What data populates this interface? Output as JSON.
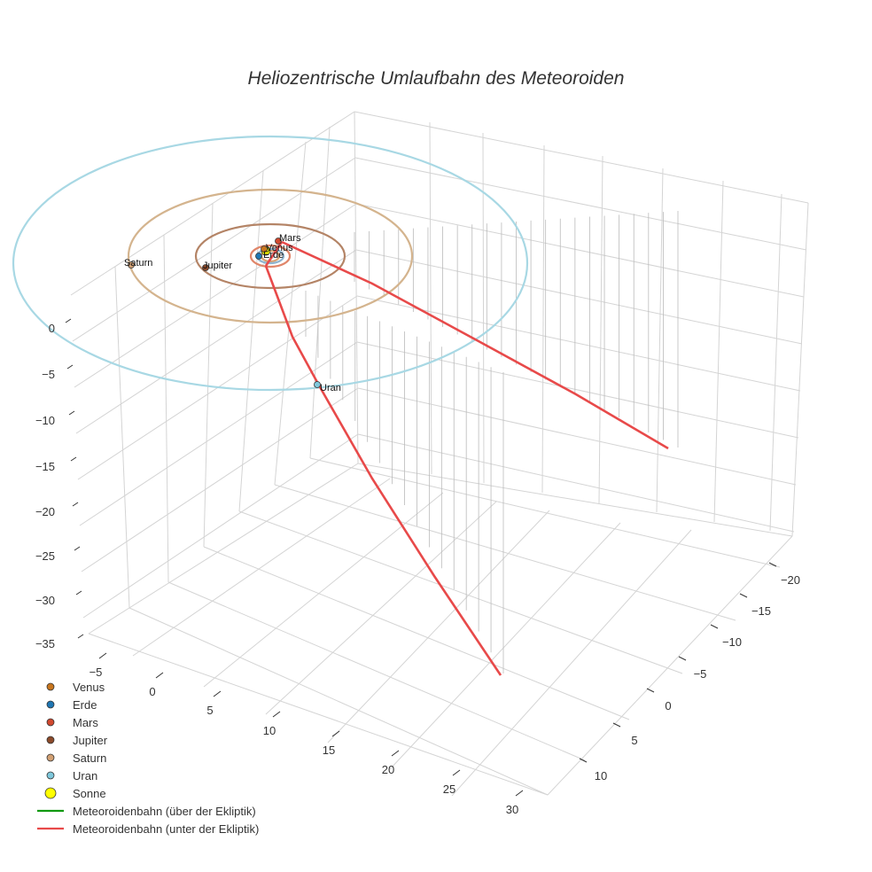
{
  "chart_data": {
    "type": "scatter3d",
    "title": "Heliozentrische Umlaufbahn des Meteoroiden",
    "axes": {
      "x_ticks": [
        "−5",
        "0",
        "5",
        "10",
        "15",
        "20",
        "25",
        "30"
      ],
      "y_ticks": [
        "−20",
        "−15",
        "−10",
        "−5",
        "0",
        "5",
        "10"
      ],
      "z_ticks": [
        "0",
        "−5",
        "−10",
        "−15",
        "−20",
        "−25",
        "−30",
        "−35"
      ]
    },
    "planets": [
      {
        "name": "Venus",
        "label": "Venus",
        "color": "#c8761e",
        "orbit_radius_au": 0.72
      },
      {
        "name": "Erde",
        "label": "Erde",
        "color": "#1f77b4",
        "orbit_radius_au": 1.0
      },
      {
        "name": "Mars",
        "label": "Mars",
        "color": "#d1492f",
        "orbit_radius_au": 1.52
      },
      {
        "name": "Jupiter",
        "label": "Jupiter",
        "color": "#8c4a2a",
        "orbit_radius_au": 5.2
      },
      {
        "name": "Saturn",
        "label": "Saturn",
        "color": "#d2a073",
        "orbit_radius_au": 9.58
      },
      {
        "name": "Uran",
        "label": "Uran",
        "color": "#7fc8dc",
        "orbit_radius_au": 19.2
      }
    ],
    "orbit_colors": {
      "Venus": "#d8a070",
      "Erde": "#8fb4cf",
      "Mars": "#e0866a",
      "Jupiter": "#b48466",
      "Saturn": "#d4b48e",
      "Uran": "#a8d8e4"
    },
    "sun": {
      "name": "Sonne",
      "color": "#ffff00"
    },
    "meteoroid": {
      "above_color": "#119911",
      "below_color": "#e84a4a",
      "segments_below": 2
    },
    "legend": [
      {
        "label": "Venus",
        "kind": "dot",
        "color": "#c8761e"
      },
      {
        "label": "Erde",
        "kind": "dot",
        "color": "#1f77b4"
      },
      {
        "label": "Mars",
        "kind": "dot",
        "color": "#d1492f"
      },
      {
        "label": "Jupiter",
        "kind": "dot",
        "color": "#8c4a2a"
      },
      {
        "label": "Saturn",
        "kind": "dot",
        "color": "#d2a073"
      },
      {
        "label": "Uran",
        "kind": "dot",
        "color": "#7fc8dc"
      },
      {
        "label": "Sonne",
        "kind": "sun",
        "color": "#ffff00"
      },
      {
        "label": "Meteoroidenbahn (über der Ekliptik)",
        "kind": "line",
        "color": "#119911"
      },
      {
        "label": "Meteoroidenbahn (unter der Ekliptik)",
        "kind": "line",
        "color": "#e84a4a"
      }
    ]
  }
}
